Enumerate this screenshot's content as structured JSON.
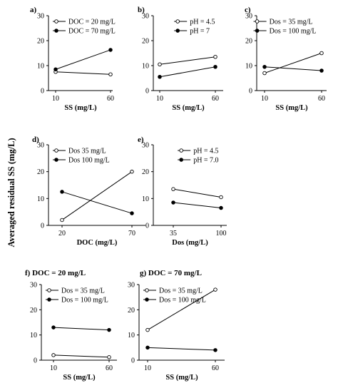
{
  "figure": {
    "ylabel": "Averaged residual SS (mg/L)"
  },
  "chart_data": [
    {
      "panel": "a)",
      "type": "line",
      "categories": [
        "10",
        "60"
      ],
      "xlabel": "SS (mg/L)",
      "ylabel": "",
      "ylim": [
        0,
        30
      ],
      "yticks": [
        0,
        10,
        20,
        30
      ],
      "legend_position": "top-left",
      "series": [
        {
          "name": "DOC = 20 mg/L",
          "values": [
            7.5,
            6.5
          ],
          "marker": "open"
        },
        {
          "name": "DOC = 70 mg/L",
          "values": [
            8.5,
            16.3
          ],
          "marker": "filled"
        }
      ]
    },
    {
      "panel": "b)",
      "type": "line",
      "categories": [
        "10",
        "60"
      ],
      "xlabel": "SS (mg/L)",
      "ylabel": "",
      "ylim": [
        0,
        30
      ],
      "yticks": [
        0,
        10,
        20,
        30
      ],
      "legend_position": "top-right",
      "series": [
        {
          "name": "pH = 4.5",
          "values": [
            10.5,
            13.5
          ],
          "marker": "open"
        },
        {
          "name": "pH = 7",
          "values": [
            5.5,
            9.5
          ],
          "marker": "filled"
        }
      ]
    },
    {
      "panel": "c)",
      "type": "line",
      "categories": [
        "10",
        "60"
      ],
      "xlabel": "SS (mg/L)",
      "ylabel": "",
      "ylim": [
        0,
        30
      ],
      "yticks": [
        0,
        10,
        20,
        30
      ],
      "legend_position": "top-right",
      "series": [
        {
          "name": "Dos = 35 mg/L",
          "values": [
            7.0,
            15.0
          ],
          "marker": "open"
        },
        {
          "name": "Dos = 100 mg/L",
          "values": [
            9.5,
            8.0
          ],
          "marker": "filled"
        }
      ]
    },
    {
      "panel": "d)",
      "type": "line",
      "categories": [
        "20",
        "70"
      ],
      "xlabel": "DOC (mg/L)",
      "ylabel": "",
      "ylim": [
        0,
        30
      ],
      "yticks": [
        0,
        10,
        20,
        30
      ],
      "legend_position": "top-left",
      "series": [
        {
          "name": "Dos 35 mg/L",
          "values": [
            2.0,
            20.0
          ],
          "marker": "open"
        },
        {
          "name": "Dos 100 mg/L",
          "values": [
            12.5,
            4.5
          ],
          "marker": "filled"
        }
      ]
    },
    {
      "panel": "e)",
      "type": "line",
      "categories": [
        "35",
        "100"
      ],
      "xlabel": "Dos (mg/L)",
      "ylabel": "",
      "ylim": [
        0,
        30
      ],
      "yticks": [
        0,
        10,
        20,
        30
      ],
      "legend_position": "top-right",
      "series": [
        {
          "name": "pH = 4.5",
          "values": [
            13.5,
            10.5
          ],
          "marker": "open"
        },
        {
          "name": "pH = 7.0",
          "values": [
            8.5,
            6.5
          ],
          "marker": "filled"
        }
      ]
    },
    {
      "panel": "f)",
      "title": "DOC = 20 mg/L",
      "type": "line",
      "categories": [
        "10",
        "60"
      ],
      "xlabel": "SS (mg/L)",
      "ylabel": "",
      "ylim": [
        0,
        30
      ],
      "yticks": [
        0,
        10,
        20,
        30
      ],
      "legend_position": "top-left",
      "series": [
        {
          "name": "Dos = 35 mg/L",
          "values": [
            2.0,
            1.2
          ],
          "marker": "open"
        },
        {
          "name": "Dos = 100 mg/L",
          "values": [
            13.0,
            12.0
          ],
          "marker": "filled"
        }
      ]
    },
    {
      "panel": "g)",
      "title": "DOC = 70 mg/L",
      "type": "line",
      "categories": [
        "10",
        "60"
      ],
      "xlabel": "SS (mg/L)",
      "ylabel": "",
      "ylim": [
        0,
        30
      ],
      "yticks": [
        0,
        10,
        20,
        30
      ],
      "legend_position": "top-left",
      "series": [
        {
          "name": "Dos = 35 mg/L",
          "values": [
            12.0,
            28.0
          ],
          "marker": "open"
        },
        {
          "name": "Dos = 100 mg/L",
          "values": [
            5.0,
            4.0
          ],
          "marker": "filled"
        }
      ]
    }
  ]
}
